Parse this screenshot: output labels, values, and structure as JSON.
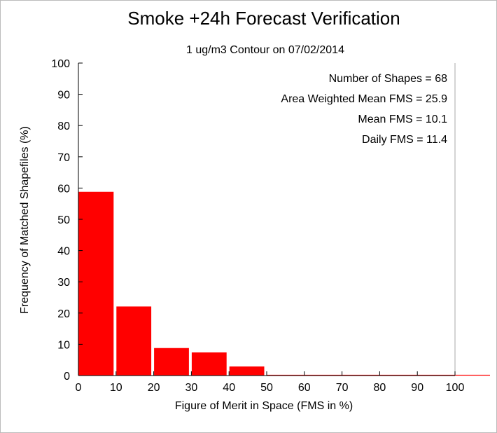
{
  "chart_data": {
    "type": "bar",
    "title": "Smoke +24h Forecast Verification",
    "subtitle": "1 ug/m3 Contour on 07/02/2014",
    "xlabel": "Figure of Merit in Space (FMS in %)",
    "ylabel": "Frequency of Matched Shapefiles (%)",
    "xlim": [
      0,
      100
    ],
    "ylim": [
      0,
      100
    ],
    "xticks": [
      "0",
      "10",
      "20",
      "30",
      "40",
      "50",
      "60",
      "70",
      "80",
      "90",
      "100"
    ],
    "yticks": [
      "0",
      "10",
      "20",
      "30",
      "40",
      "50",
      "60",
      "70",
      "80",
      "90",
      "100"
    ],
    "bins": [
      {
        "x0": 0,
        "x1": 10,
        "value": 58.8
      },
      {
        "x0": 10,
        "x1": 20,
        "value": 22.1
      },
      {
        "x0": 20,
        "x1": 30,
        "value": 8.8
      },
      {
        "x0": 30,
        "x1": 40,
        "value": 7.4
      },
      {
        "x0": 40,
        "x1": 50,
        "value": 2.9
      },
      {
        "x0": 50,
        "x1": 60,
        "value": 0
      },
      {
        "x0": 60,
        "x1": 70,
        "value": 0
      },
      {
        "x0": 70,
        "x1": 80,
        "value": 0
      },
      {
        "x0": 80,
        "x1": 90,
        "value": 0
      },
      {
        "x0": 90,
        "x1": 100,
        "value": 0
      }
    ],
    "bar_color": "#ff0000",
    "grid": false,
    "annotations": [
      "Number of Shapes = 68",
      "Area Weighted Mean FMS = 25.9",
      "Mean FMS = 10.1",
      "Daily FMS = 11.4"
    ]
  }
}
